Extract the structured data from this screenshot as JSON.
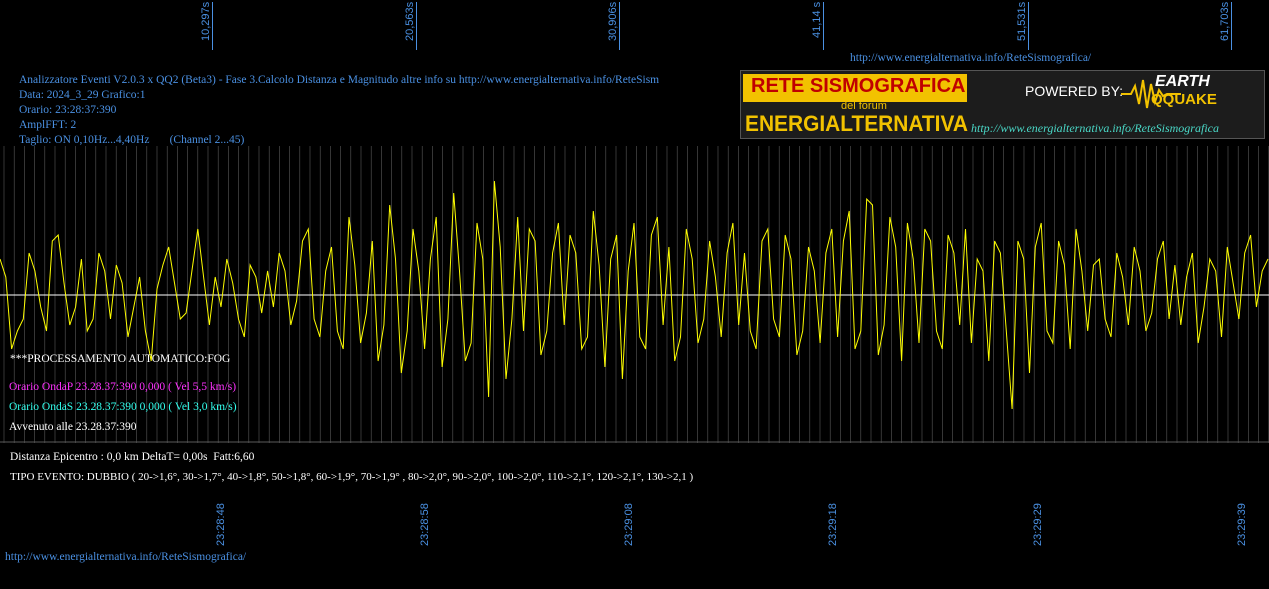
{
  "top_time_labels": [
    "10,297s",
    "20,563s",
    "30,906s",
    "41,14 s",
    "51,531s",
    "61,703s"
  ],
  "header_url": "http://www.energialternativa.info/ReteSismografica/",
  "info_lines": {
    "line1": "Analizzatore Eventi V2.0.3 x QQ2 (Beta3) - Fase 3.Calcolo Distanza e Magnitudo altre info su http://www.energialternativa.info/ReteSism",
    "line2": "Data: 2024_3_29 Grafico:1",
    "line3": "Orario: 23:28:37:390",
    "line4": "AmplFFT: 2",
    "line5": "Taglio: ON 0,10Hz...4,40Hz       (Channel 2...45)"
  },
  "logo": {
    "title": "RETE SISMOGRAFICA",
    "subtitle": "del forum",
    "brand": "ENERGIALTERNATIVA",
    "powered_by": "POWERED BY:",
    "earth": "EARTH",
    "qquake": "QQUAKE",
    "url": "http://www.energialternativa.info/ReteSismografica"
  },
  "processing": {
    "auto": "***PROCESSAMENTO AUTOMATICO:FOG",
    "onda_p": "Orario OndaP 23.28.37:390  0,000 ( Vel 5,5 km/s)",
    "onda_s": "Orario OndaS 23.28.37:390  0,000 ( Vel 3,0 km/s)",
    "avvenuto": "Avvenuto alle 23.28.37:390"
  },
  "distance_line": "Distanza Epicentro : 0,0 km DeltaT= 0,00s  Fatt:6,60",
  "event_type": "TIPO EVENTO: DUBBIO ( 20->1,6°, 30->1,7°, 40->1,8°, 50->1,8°, 60->1,9°, 70->1,9° , 80->2,0°, 90->2,0°, 100->2,0°, 110->2,1°, 120->2,1°, 130->2,1 )",
  "footer_url": "http://www.energialternativa.info/ReteSismografica/",
  "colors": {
    "trace": "#ffff00",
    "baseline": "#ffffff",
    "grid": "#5a5a5a",
    "axis_text": "#4a90e2",
    "onda_p": "#ff33ff",
    "onda_s": "#33ffee"
  },
  "chart_data": {
    "type": "line",
    "title": "",
    "bottom_time_labels": [
      "23:28:48",
      "23:28:58",
      "23:29:08",
      "23:29:18",
      "23:29:29",
      "23:29:39"
    ],
    "series": [
      {
        "values": [
          0.3,
          0.15,
          -0.45,
          -0.3,
          -0.2,
          0.35,
          0.2,
          -0.1,
          -0.3,
          0.45,
          0.5,
          0.1,
          -0.25,
          -0.1,
          0.3,
          -0.3,
          -0.2,
          0.35,
          0.2,
          -0.2,
          0.25,
          0.1,
          -0.35,
          -0.1,
          0.15,
          -0.3,
          -0.55,
          0.05,
          0.25,
          0.4,
          0.1,
          -0.2,
          -0.15,
          0.2,
          0.55,
          0.15,
          -0.25,
          0.15,
          -0.1,
          0.3,
          0.1,
          -0.2,
          -0.35,
          0.25,
          0.15,
          -0.15,
          0.2,
          -0.1,
          0.35,
          0.2,
          -0.25,
          -0.05,
          0.45,
          0.55,
          -0.2,
          -0.35,
          0.2,
          0.4,
          -0.3,
          -0.45,
          0.65,
          0.25,
          -0.4,
          -0.15,
          0.45,
          -0.55,
          -0.25,
          0.75,
          0.3,
          -0.65,
          -0.3,
          0.55,
          0.2,
          -0.45,
          0.3,
          0.65,
          -0.6,
          -0.2,
          0.85,
          0.2,
          -0.55,
          -0.4,
          0.6,
          0.3,
          -0.85,
          0.95,
          0.4,
          -0.7,
          -0.2,
          0.65,
          -0.3,
          0.55,
          0.45,
          -0.5,
          -0.3,
          0.35,
          0.6,
          -0.25,
          0.5,
          0.35,
          -0.45,
          -0.35,
          0.7,
          0.25,
          -0.6,
          0.3,
          0.5,
          -0.7,
          0.2,
          0.6,
          -0.35,
          -0.45,
          0.5,
          0.65,
          -0.25,
          0.4,
          -0.55,
          -0.35,
          0.55,
          0.3,
          -0.4,
          -0.2,
          0.45,
          0.15,
          -0.35,
          0.35,
          0.6,
          -0.25,
          0.35,
          -0.3,
          -0.45,
          0.45,
          0.55,
          -0.2,
          -0.35,
          0.5,
          0.3,
          -0.5,
          -0.3,
          0.4,
          0.2,
          -0.4,
          0.35,
          0.55,
          -0.35,
          0.45,
          0.7,
          -0.45,
          -0.3,
          0.8,
          0.75,
          -0.5,
          -0.25,
          0.65,
          0.4,
          -0.55,
          0.6,
          0.3,
          -0.4,
          0.55,
          0.45,
          -0.3,
          -0.45,
          0.5,
          0.35,
          -0.25,
          0.55,
          -0.4,
          0.3,
          0.2,
          -0.55,
          0.45,
          0.35,
          -0.3,
          -0.95,
          0.45,
          0.3,
          -0.65,
          0.4,
          0.6,
          -0.3,
          -0.4,
          0.45,
          0.25,
          -0.45,
          0.55,
          0.2,
          -0.3,
          0.25,
          0.3,
          -0.2,
          -0.35,
          0.35,
          0.15,
          -0.25,
          0.4,
          0.2,
          -0.3,
          -0.15,
          0.3,
          0.45,
          -0.2,
          0.25,
          -0.25,
          0.15,
          0.35,
          -0.4,
          -0.1,
          0.3,
          0.2,
          -0.35,
          0.4,
          0.1,
          -0.2,
          0.35,
          0.5,
          -0.1,
          0.2,
          0.3
        ]
      }
    ]
  }
}
